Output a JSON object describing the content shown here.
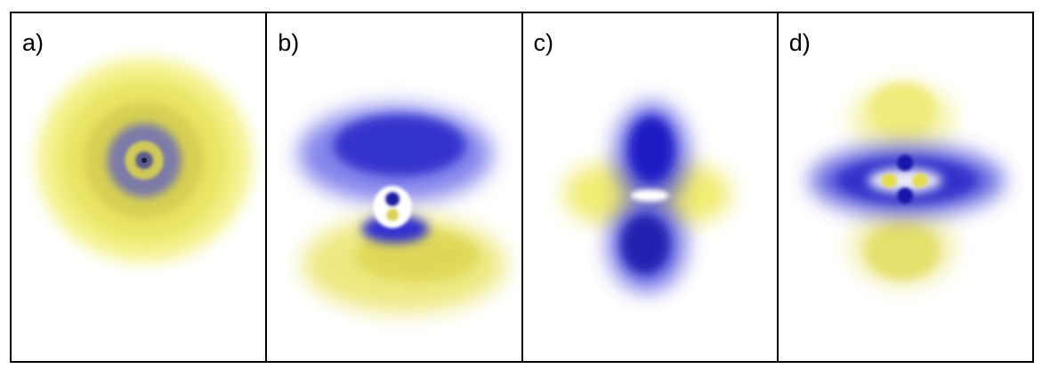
{
  "panels": [
    {
      "label": "a)"
    },
    {
      "label": "b)"
    },
    {
      "label": "c)"
    },
    {
      "label": "d)"
    }
  ],
  "colors": {
    "positive_lobe": "#f0ee6a",
    "negative_lobe": "#2a2acc",
    "border": "#000000"
  }
}
